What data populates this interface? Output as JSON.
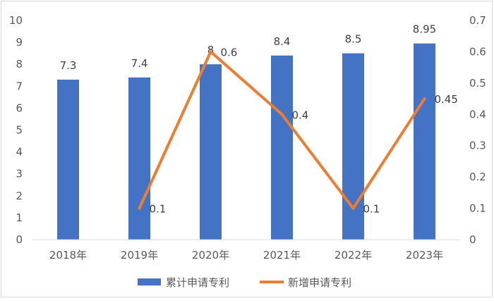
{
  "chart_data": {
    "type": "bar",
    "categories": [
      "2018年",
      "2019年",
      "2020年",
      "2021年",
      "2022年",
      "2023年"
    ],
    "title": "",
    "xlabel": "",
    "ylabel": "",
    "ylim": [
      0,
      10
    ],
    "y2lim": [
      0,
      0.7
    ],
    "grid": false,
    "legend": "bottom",
    "series": [
      {
        "name": "累计申请专利",
        "type": "bar",
        "axis": "left",
        "color": "#4472C4",
        "values": [
          7.3,
          7.4,
          8,
          8.4,
          8.5,
          8.95
        ],
        "labels": [
          "7.3",
          "7.4",
          "8",
          "8.4",
          "8.5",
          "8.95"
        ]
      },
      {
        "name": "新增申请专利",
        "type": "line",
        "axis": "right",
        "color": "#ED7D31",
        "x": [
          "2019年",
          "2020年",
          "2021年",
          "2022年",
          "2023年"
        ],
        "values": [
          0.1,
          0.6,
          0.4,
          0.1,
          0.45
        ],
        "labels": [
          "0.1",
          "0.6",
          "0.4",
          "0.1",
          "0.45"
        ]
      }
    ],
    "left_ticks": [
      "0",
      "1",
      "2",
      "3",
      "4",
      "5",
      "6",
      "7",
      "8",
      "9",
      "10"
    ],
    "right_ticks": [
      "0",
      "0.1",
      "0.2",
      "0.3",
      "0.4",
      "0.5",
      "0.6",
      "0.7"
    ]
  }
}
